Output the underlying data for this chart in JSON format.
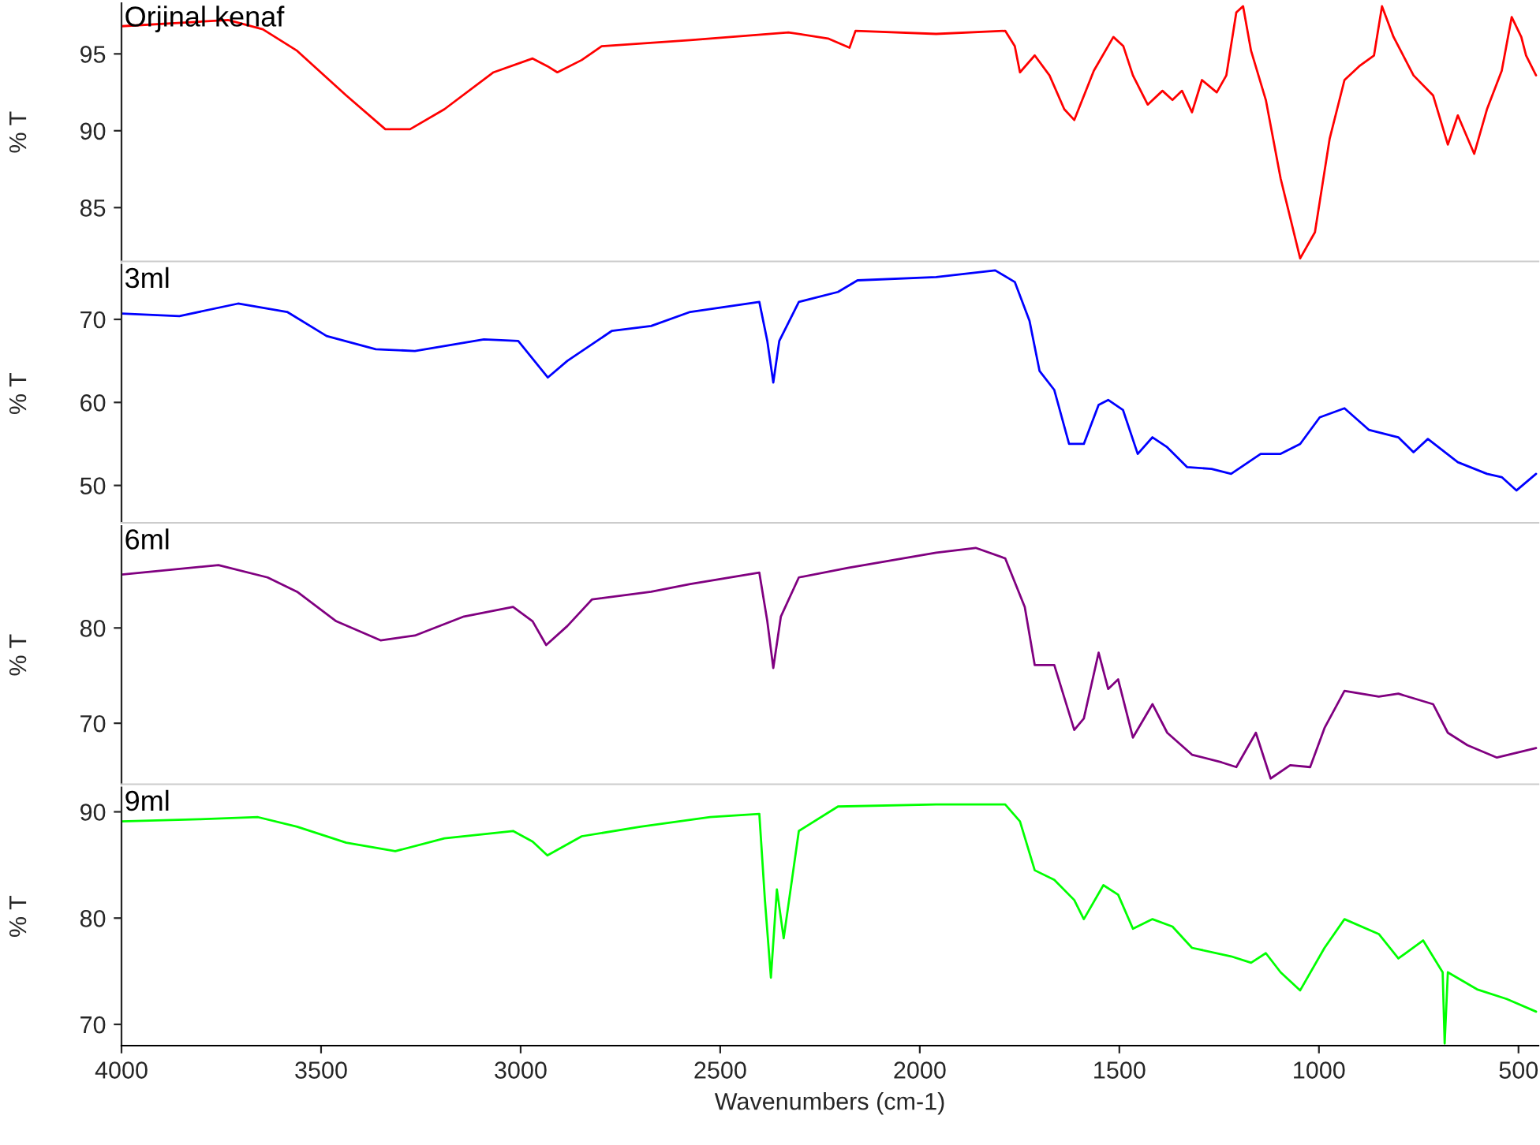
{
  "chart_data": [
    {
      "type": "line",
      "ylabel": "% T",
      "xlim": [
        4000,
        450
      ],
      "ylim": [
        81.5,
        98.3
      ],
      "yticks": [
        85,
        90,
        95
      ],
      "tick_labels": "y",
      "grid": false,
      "series": [
        {
          "name": "Orjinal kenaf",
          "color": "#ff0000",
          "x": [
            4000,
            3733,
            3646,
            3560,
            3437,
            3339,
            3277,
            3191,
            3068,
            2970,
            2933,
            2908,
            2847,
            2797,
            2575,
            2329,
            2230,
            2176,
            2161,
            1959,
            1786,
            1762,
            1749,
            1712,
            1675,
            1638,
            1613,
            1564,
            1515,
            1490,
            1466,
            1429,
            1392,
            1367,
            1343,
            1318,
            1293,
            1256,
            1232,
            1207,
            1190,
            1170,
            1133,
            1096,
            1047,
            1010,
            973,
            936,
            899,
            862,
            842,
            813,
            763,
            714,
            677,
            652,
            611,
            579,
            542,
            517,
            493,
            481,
            456
          ],
          "values": [
            96.8,
            97.2,
            96.6,
            95.2,
            92.3,
            90.1,
            90.1,
            91.4,
            93.8,
            94.7,
            94.2,
            93.8,
            94.6,
            95.5,
            95.9,
            96.4,
            96.0,
            95.4,
            96.5,
            96.3,
            96.5,
            95.5,
            93.8,
            94.9,
            93.6,
            91.4,
            90.7,
            93.9,
            96.1,
            95.5,
            93.6,
            91.7,
            92.6,
            92.0,
            92.6,
            91.2,
            93.3,
            92.5,
            93.6,
            97.7,
            98.1,
            95.2,
            92.0,
            86.9,
            81.7,
            83.4,
            89.5,
            93.3,
            94.2,
            94.9,
            98.1,
            96.1,
            93.6,
            92.3,
            89.1,
            91.0,
            88.5,
            91.4,
            93.9,
            97.4,
            96.1,
            94.9,
            93.6
          ]
        }
      ]
    },
    {
      "type": "line",
      "ylabel": "% T",
      "xlim": [
        4000,
        450
      ],
      "ylim": [
        45.5,
        76.6
      ],
      "yticks": [
        50,
        60,
        70
      ],
      "tick_labels": "y",
      "grid": false,
      "series": [
        {
          "name": "3ml",
          "color": "#0000ff",
          "x": [
            4000,
            3855,
            3708,
            3585,
            3486,
            3363,
            3265,
            3092,
            3006,
            2932,
            2883,
            2772,
            2673,
            2575,
            2402,
            2382,
            2367,
            2352,
            2303,
            2205,
            2156,
            1959,
            1811,
            1762,
            1725,
            1700,
            1663,
            1626,
            1589,
            1552,
            1528,
            1491,
            1454,
            1417,
            1380,
            1330,
            1269,
            1220,
            1146,
            1096,
            1047,
            998,
            936,
            875,
            801,
            763,
            727,
            652,
            579,
            542,
            505,
            456
          ],
          "values": [
            70.7,
            70.4,
            71.9,
            70.9,
            68.0,
            66.4,
            66.2,
            67.6,
            67.4,
            63.0,
            65.0,
            68.6,
            69.2,
            70.9,
            72.1,
            67.4,
            62.4,
            67.4,
            72.1,
            73.3,
            74.7,
            75.1,
            75.9,
            74.5,
            69.8,
            63.8,
            61.5,
            55.0,
            55.0,
            59.7,
            60.3,
            59.1,
            53.8,
            55.8,
            54.6,
            52.2,
            52.0,
            51.4,
            53.8,
            53.8,
            55.0,
            58.2,
            59.3,
            56.7,
            55.8,
            54.0,
            55.6,
            52.8,
            51.4,
            51.0,
            49.4,
            51.4
          ]
        }
      ]
    },
    {
      "type": "line",
      "ylabel": "% T",
      "xlim": [
        4000,
        450
      ],
      "ylim": [
        63.6,
        90.7
      ],
      "yticks": [
        70,
        80
      ],
      "tick_labels": "y",
      "grid": false,
      "series": [
        {
          "name": "6ml",
          "color": "#800080",
          "x": [
            4000,
            3757,
            3634,
            3560,
            3462,
            3351,
            3265,
            3142,
            3019,
            2970,
            2936,
            2883,
            2821,
            2673,
            2575,
            2402,
            2382,
            2367,
            2348,
            2303,
            2180,
            1959,
            1860,
            1786,
            1737,
            1712,
            1663,
            1613,
            1589,
            1552,
            1528,
            1503,
            1466,
            1417,
            1380,
            1318,
            1244,
            1207,
            1158,
            1121,
            1072,
            1022,
            986,
            936,
            850,
            801,
            714,
            677,
            628,
            554,
            505,
            456
          ],
          "values": [
            85.6,
            86.6,
            85.3,
            83.8,
            80.7,
            78.7,
            79.2,
            81.2,
            82.2,
            80.7,
            78.2,
            80.2,
            83.0,
            83.8,
            84.6,
            85.8,
            80.7,
            75.8,
            81.2,
            85.3,
            86.3,
            87.9,
            88.4,
            87.3,
            82.2,
            76.1,
            76.1,
            69.3,
            70.5,
            77.4,
            73.6,
            74.6,
            68.5,
            72.0,
            69.0,
            66.7,
            65.9,
            65.4,
            69.0,
            64.2,
            65.6,
            65.4,
            69.5,
            73.4,
            72.8,
            73.1,
            72.0,
            69.0,
            67.7,
            66.4,
            66.9,
            67.4
          ]
        }
      ]
    },
    {
      "type": "line",
      "ylabel": "% T",
      "xlabel": "Wavenumbers (cm-1)",
      "xlim": [
        4000,
        450
      ],
      "xticks": [
        4000,
        3500,
        3000,
        2500,
        2000,
        1500,
        1000,
        500
      ],
      "ylim": [
        68.0,
        92.3
      ],
      "yticks": [
        70,
        80,
        90
      ],
      "grid": false,
      "series": [
        {
          "name": "9ml",
          "color": "#00ff00",
          "x": [
            4000,
            3805,
            3658,
            3560,
            3437,
            3314,
            3191,
            3019,
            2970,
            2933,
            2847,
            2700,
            2525,
            2402,
            2388,
            2373,
            2358,
            2341,
            2303,
            2205,
            1959,
            1786,
            1749,
            1712,
            1663,
            1613,
            1589,
            1540,
            1503,
            1466,
            1417,
            1367,
            1318,
            1220,
            1170,
            1133,
            1096,
            1047,
            986,
            936,
            850,
            801,
            739,
            690,
            685,
            677,
            604,
            530,
            456
          ],
          "values": [
            89.1,
            89.3,
            89.5,
            88.6,
            87.1,
            86.3,
            87.5,
            88.2,
            87.2,
            85.9,
            87.7,
            88.6,
            89.5,
            89.8,
            81.7,
            74.4,
            82.7,
            78.1,
            88.2,
            90.5,
            90.7,
            90.7,
            89.1,
            84.5,
            83.6,
            81.7,
            79.9,
            83.1,
            82.2,
            79.0,
            79.9,
            79.2,
            77.2,
            76.4,
            75.8,
            76.7,
            74.9,
            73.2,
            77.2,
            79.9,
            78.5,
            76.2,
            77.9,
            74.9,
            68.2,
            74.9,
            73.3,
            72.4,
            71.2
          ]
        }
      ]
    }
  ]
}
